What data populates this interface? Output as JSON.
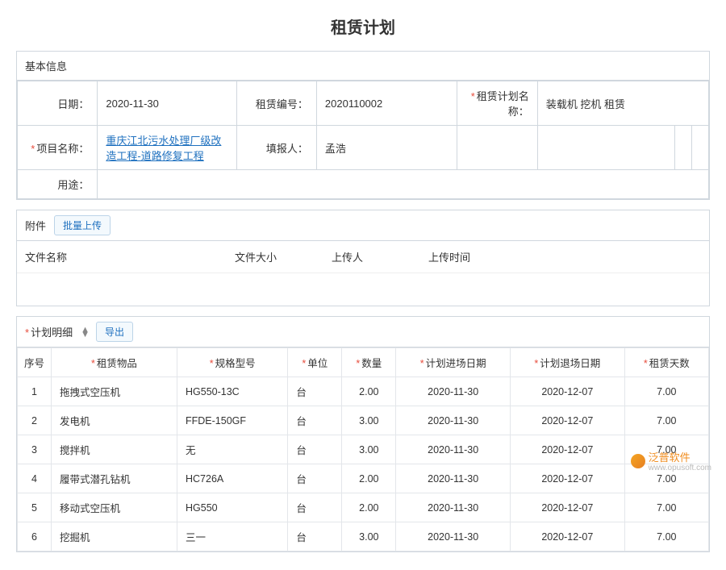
{
  "title": "租赁计划",
  "basicInfo": {
    "header": "基本信息",
    "labels": {
      "date": "日期：",
      "rentCode": "租赁编号：",
      "planName": "租赁计划名称：",
      "projectName": "项目名称：",
      "reporter": "填报人：",
      "usage": "用途："
    },
    "values": {
      "date": "2020-11-30",
      "rentCode": "2020110002",
      "planName": "装载机 挖机 租赁",
      "projectName": "重庆江北污水处理厂级改造工程-道路修复工程",
      "reporter": "孟浩",
      "usage": ""
    }
  },
  "attachment": {
    "label": "附件",
    "bulkUpload": "批量上传",
    "cols": {
      "name": "文件名称",
      "size": "文件大小",
      "uploader": "上传人",
      "time": "上传时间"
    }
  },
  "detail": {
    "header": "计划明细",
    "export": "导出",
    "columns": {
      "seq": "序号",
      "item": "租赁物品",
      "spec": "规格型号",
      "unit": "单位",
      "qty": "数量",
      "inDate": "计划进场日期",
      "outDate": "计划退场日期",
      "days": "租赁天数"
    },
    "rows": [
      {
        "seq": "1",
        "item": "拖拽式空压机",
        "spec": "HG550-13C",
        "unit": "台",
        "qty": "2.00",
        "inDate": "2020-11-30",
        "outDate": "2020-12-07",
        "days": "7.00"
      },
      {
        "seq": "2",
        "item": "发电机",
        "spec": "FFDE-150GF",
        "unit": "台",
        "qty": "3.00",
        "inDate": "2020-11-30",
        "outDate": "2020-12-07",
        "days": "7.00"
      },
      {
        "seq": "3",
        "item": "搅拌机",
        "spec": "无",
        "unit": "台",
        "qty": "3.00",
        "inDate": "2020-11-30",
        "outDate": "2020-12-07",
        "days": "7.00"
      },
      {
        "seq": "4",
        "item": "履带式潜孔钻机",
        "spec": "HC726A",
        "unit": "台",
        "qty": "2.00",
        "inDate": "2020-11-30",
        "outDate": "2020-12-07",
        "days": "7.00"
      },
      {
        "seq": "5",
        "item": "移动式空压机",
        "spec": "HG550",
        "unit": "台",
        "qty": "2.00",
        "inDate": "2020-11-30",
        "outDate": "2020-12-07",
        "days": "7.00"
      },
      {
        "seq": "6",
        "item": "挖掘机",
        "spec": "三一",
        "unit": "台",
        "qty": "3.00",
        "inDate": "2020-11-30",
        "outDate": "2020-12-07",
        "days": "7.00"
      }
    ]
  },
  "watermark": {
    "brand": "泛普软件",
    "url": "www.opusoft.com"
  }
}
